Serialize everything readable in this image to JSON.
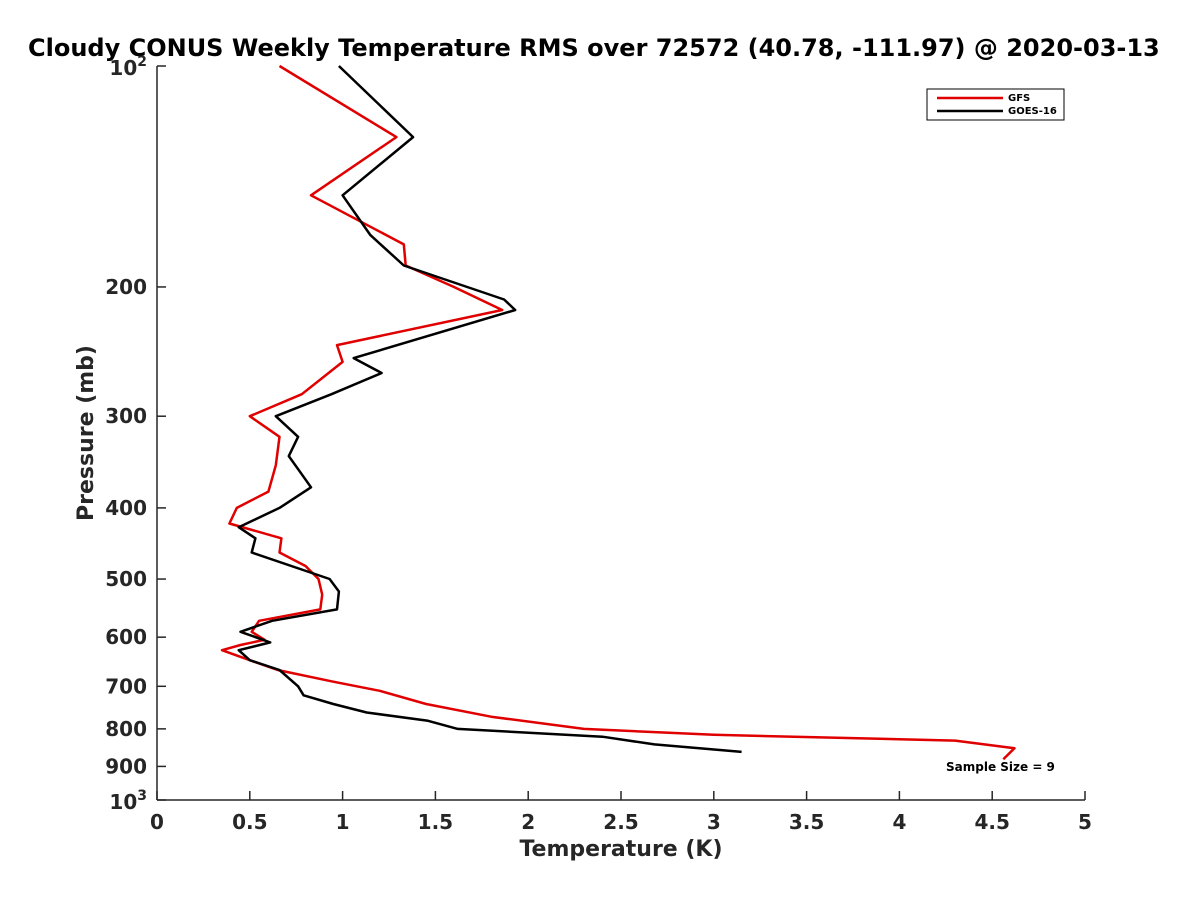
{
  "chart_data": {
    "type": "line",
    "title": "Cloudy CONUS Weekly Temperature RMS over 72572 (40.78, -111.97) @ 2020-03-13",
    "xlabel": "Temperature (K)",
    "ylabel": "Pressure (mb)",
    "xlim": [
      0,
      5
    ],
    "ylim": [
      100,
      1000
    ],
    "y_scale": "log",
    "y_reversed": true,
    "x_ticks": [
      "0",
      "0.5",
      "1",
      "1.5",
      "2",
      "2.5",
      "3",
      "3.5",
      "4",
      "4.5",
      "5"
    ],
    "y_ticks": [
      {
        "value": 100,
        "base": "10",
        "exp": "2"
      },
      {
        "value": 200,
        "label": "200"
      },
      {
        "value": 300,
        "label": "300"
      },
      {
        "value": 400,
        "label": "400"
      },
      {
        "value": 500,
        "label": "500"
      },
      {
        "value": 600,
        "label": "600"
      },
      {
        "value": 700,
        "label": "700"
      },
      {
        "value": 800,
        "label": "800"
      },
      {
        "value": 900,
        "label": "900"
      },
      {
        "value": 1000,
        "base": "10",
        "exp": "3"
      }
    ],
    "grid": false,
    "legend_position": "top-right",
    "annotation": "Sample Size = 9",
    "series": [
      {
        "name": "GFS",
        "color": "#e00000",
        "points": [
          [
            0.66,
            100
          ],
          [
            1.29,
            125
          ],
          [
            0.83,
            150
          ],
          [
            1.33,
            175
          ],
          [
            1.34,
            187
          ],
          [
            1.6,
            200
          ],
          [
            1.86,
            215
          ],
          [
            0.97,
            240
          ],
          [
            1.0,
            253
          ],
          [
            0.78,
            280
          ],
          [
            0.5,
            300
          ],
          [
            0.66,
            320
          ],
          [
            0.64,
            350
          ],
          [
            0.6,
            380
          ],
          [
            0.43,
            400
          ],
          [
            0.39,
            420
          ],
          [
            0.67,
            440
          ],
          [
            0.66,
            460
          ],
          [
            0.8,
            480
          ],
          [
            0.87,
            500
          ],
          [
            0.89,
            525
          ],
          [
            0.88,
            550
          ],
          [
            0.55,
            570
          ],
          [
            0.51,
            590
          ],
          [
            0.58,
            605
          ],
          [
            0.45,
            615
          ],
          [
            0.35,
            625
          ],
          [
            0.5,
            645
          ],
          [
            0.65,
            665
          ],
          [
            0.95,
            690
          ],
          [
            1.2,
            710
          ],
          [
            1.45,
            740
          ],
          [
            1.8,
            770
          ],
          [
            2.3,
            800
          ],
          [
            3.0,
            815
          ],
          [
            4.3,
            830
          ],
          [
            4.62,
            850
          ],
          [
            4.58,
            870
          ],
          [
            4.56,
            880
          ]
        ]
      },
      {
        "name": "GOES-16",
        "color": "#000000",
        "points": [
          [
            0.98,
            100
          ],
          [
            1.38,
            125
          ],
          [
            1.0,
            150
          ],
          [
            1.15,
            170
          ],
          [
            1.33,
            187
          ],
          [
            1.87,
            208
          ],
          [
            1.93,
            215
          ],
          [
            1.06,
            250
          ],
          [
            1.21,
            262
          ],
          [
            0.94,
            280
          ],
          [
            0.64,
            300
          ],
          [
            0.76,
            320
          ],
          [
            0.71,
            340
          ],
          [
            0.78,
            360
          ],
          [
            0.83,
            375
          ],
          [
            0.66,
            400
          ],
          [
            0.44,
            425
          ],
          [
            0.53,
            440
          ],
          [
            0.51,
            460
          ],
          [
            0.93,
            500
          ],
          [
            0.98,
            520
          ],
          [
            0.97,
            550
          ],
          [
            0.62,
            570
          ],
          [
            0.45,
            590
          ],
          [
            0.61,
            610
          ],
          [
            0.44,
            625
          ],
          [
            0.5,
            645
          ],
          [
            0.66,
            665
          ],
          [
            0.76,
            700
          ],
          [
            0.79,
            720
          ],
          [
            0.95,
            740
          ],
          [
            1.13,
            760
          ],
          [
            1.46,
            780
          ],
          [
            1.62,
            800
          ],
          [
            2.4,
            820
          ],
          [
            2.68,
            840
          ],
          [
            3.15,
            860
          ]
        ]
      }
    ]
  }
}
